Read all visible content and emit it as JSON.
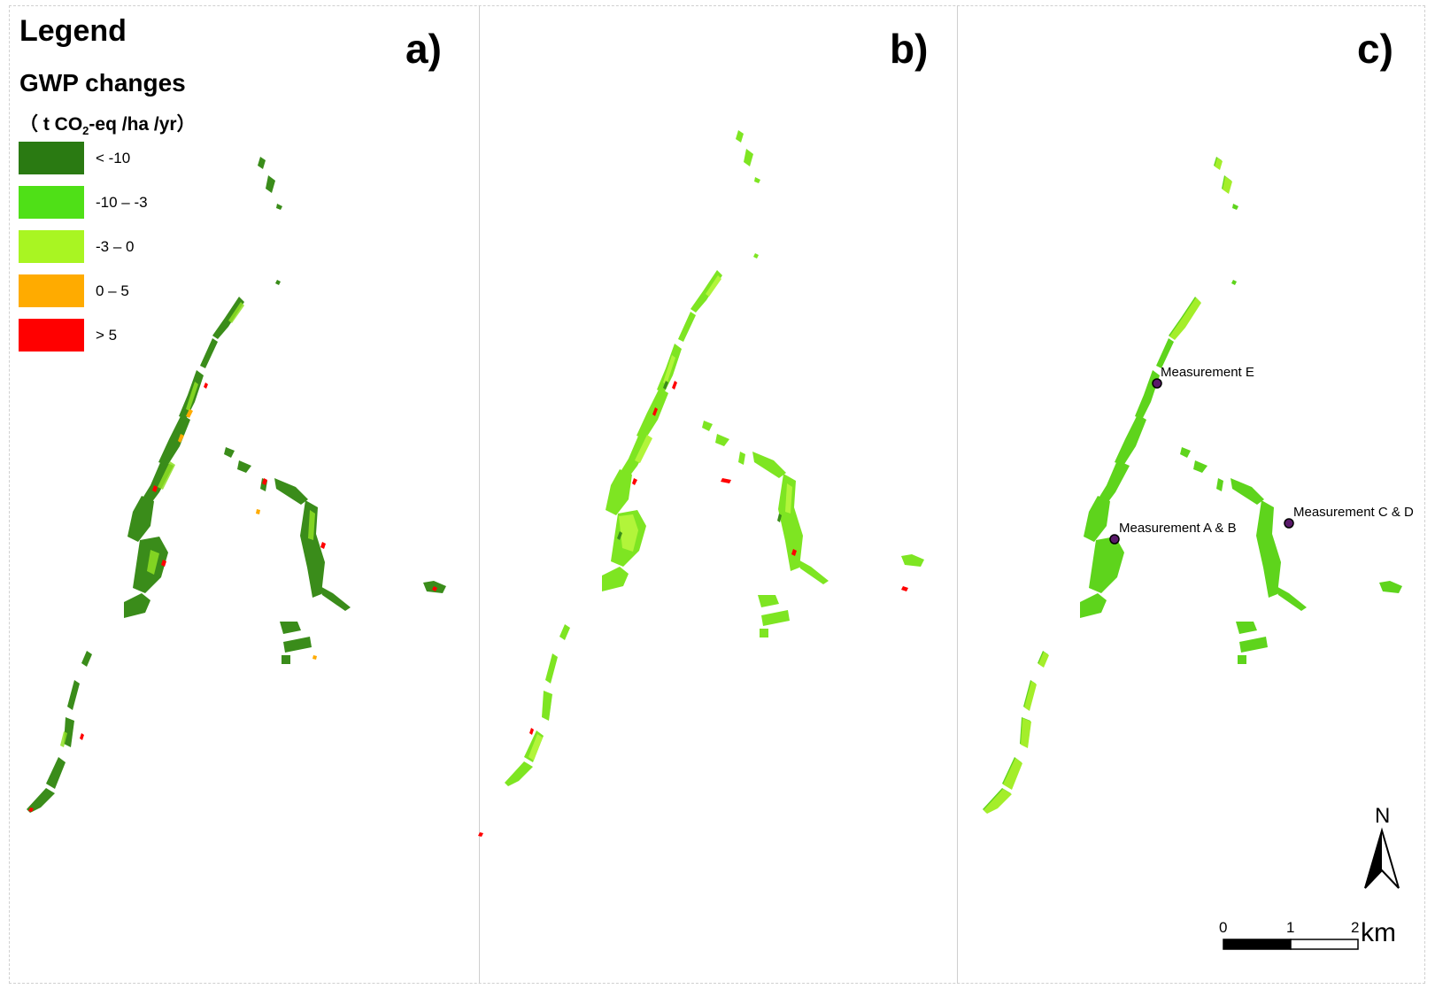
{
  "panels": [
    {
      "label": "a)"
    },
    {
      "label": "b)"
    },
    {
      "label": "c)"
    }
  ],
  "legend": {
    "title": "Legend",
    "subtitle": "GWP changes",
    "units_prefix": "（ t CO",
    "units_sub": "2",
    "units_suffix": "-eq /ha /yr）",
    "items": [
      {
        "label": "< -10",
        "color": "#2a7a12"
      },
      {
        "label": "-10 – -3",
        "color": "#4fe017"
      },
      {
        "label": "-3 – 0",
        "color": "#a9f522"
      },
      {
        "label": "0 – 5",
        "color": "#ffab00"
      },
      {
        "label": "> 5",
        "color": "#ff0000"
      }
    ]
  },
  "measurements": [
    {
      "label": "Measurement E"
    },
    {
      "label": "Measurement A & B"
    },
    {
      "label": "Measurement C & D"
    }
  ],
  "north_arrow": {
    "label": "N"
  },
  "scale_bar": {
    "ticks": [
      "0",
      "1",
      "2"
    ],
    "unit": "km"
  }
}
